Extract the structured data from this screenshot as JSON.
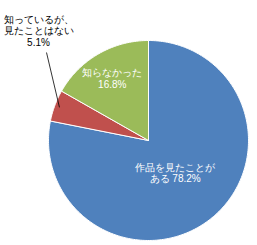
{
  "chart_data": {
    "type": "pie",
    "categories": [
      "作品を見たことがある",
      "知っているが、見たことはない",
      "知らなかった"
    ],
    "values": [
      78.2,
      5.1,
      16.8
    ],
    "value_labels": [
      "78.2%",
      "5.1%",
      "16.8%"
    ],
    "colors": [
      "#4f81bd",
      "#c0504d",
      "#9bbb59"
    ],
    "data_labels": true
  }
}
